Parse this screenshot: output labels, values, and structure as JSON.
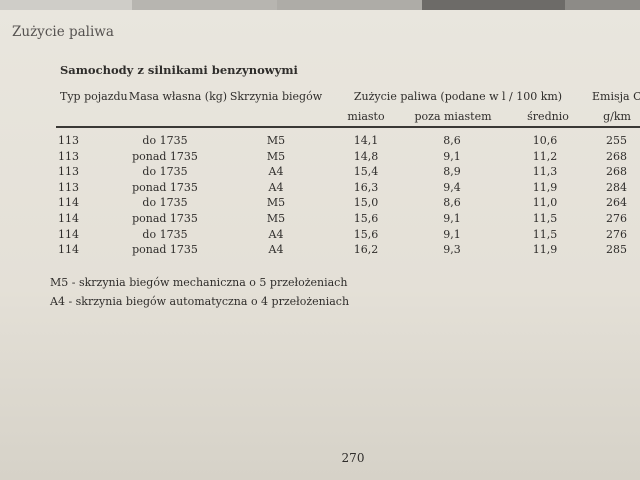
{
  "section_title": "Zużycie paliwa",
  "subtitle": "Samochody z silnikami benzynowymi",
  "table": {
    "headers": {
      "type": "Typ pojazdu",
      "mass": "Masa własna (kg)",
      "gearbox": "Skrzynia biegów",
      "consumption": "Zużycie paliwa (podane w l / 100 km)",
      "emission": "Emisja CO",
      "city": "miasto",
      "outside": "poza miastem",
      "average": "średnio",
      "emission_unit": "g/km"
    },
    "rows": [
      [
        "113",
        "do 1735",
        "M5",
        "14,1",
        "8,6",
        "10,6",
        "255"
      ],
      [
        "113",
        "ponad 1735",
        "M5",
        "14,8",
        "9,1",
        "11,2",
        "268"
      ],
      [
        "113",
        "do 1735",
        "A4",
        "15,4",
        "8,9",
        "11,3",
        "268"
      ],
      [
        "113",
        "ponad 1735",
        "A4",
        "16,3",
        "9,4",
        "11,9",
        "284"
      ],
      [
        "114",
        "do 1735",
        "M5",
        "15,0",
        "8,6",
        "11,0",
        "264"
      ],
      [
        "114",
        "ponad 1735",
        "M5",
        "15,6",
        "9,1",
        "11,5",
        "276"
      ],
      [
        "114",
        "do 1735",
        "A4",
        "15,6",
        "9,1",
        "11,5",
        "276"
      ],
      [
        "114",
        "ponad 1735",
        "A4",
        "16,2",
        "9,3",
        "11,9",
        "285"
      ]
    ]
  },
  "footnotes": [
    "M5 - skrzynia biegów mechaniczna o 5 przełożeniach",
    "A4 - skrzynia biegów automatyczna o 4 przełożeniach"
  ],
  "page_number": "270",
  "colors": {
    "paper": "#e6e2d9",
    "text": "#2f2d2b",
    "tab_dark": "#6d6b68"
  }
}
